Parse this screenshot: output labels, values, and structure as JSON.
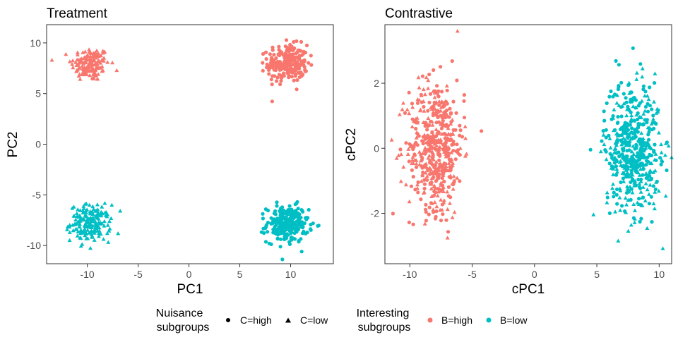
{
  "colors": {
    "B=high": "#F8766D",
    "B=low": "#00BFC4",
    "axis": "#333333",
    "text": "#000000"
  },
  "chart_data": [
    {
      "type": "scatter",
      "title": "Treatment",
      "xlabel": "PC1",
      "ylabel": "PC2",
      "xlim": [
        -14,
        14.2
      ],
      "ylim": [
        -11.8,
        11.8
      ],
      "xticks": [
        -10,
        -5,
        0,
        5,
        10
      ],
      "yticks": [
        -10,
        -5,
        0,
        5,
        10
      ],
      "grid": false,
      "clusters": [
        {
          "B": "B=high",
          "C": "C=low",
          "n": 150,
          "cx": -9.7,
          "cy": 7.9,
          "sx": 1.1,
          "sy": 0.85
        },
        {
          "B": "B=high",
          "C": "C=high",
          "n": 240,
          "cx": 9.7,
          "cy": 8.0,
          "sx": 1.15,
          "sy": 0.9
        },
        {
          "B": "B=low",
          "C": "C=low",
          "n": 190,
          "cx": -9.7,
          "cy": -7.8,
          "sx": 1.15,
          "sy": 0.9
        },
        {
          "B": "B=low",
          "C": "C=high",
          "n": 240,
          "cx": 9.7,
          "cy": -7.9,
          "sx": 1.2,
          "sy": 0.9
        }
      ]
    },
    {
      "type": "scatter",
      "title": "Contrastive",
      "xlabel": "cPC1",
      "ylabel": "cPC2",
      "xlim": [
        -12,
        11
      ],
      "ylim": [
        -3.55,
        3.8
      ],
      "xticks": [
        -10,
        -5,
        0,
        5,
        10
      ],
      "yticks": [
        -2,
        0,
        2
      ],
      "grid": false,
      "clusters": [
        {
          "B": "B=high",
          "C": "C=low",
          "n": 260,
          "cx": -8.0,
          "cy": 0.0,
          "sx": 1.3,
          "sy": 1.05
        },
        {
          "B": "B=high",
          "C": "C=high",
          "n": 260,
          "cx": -7.8,
          "cy": 0.1,
          "sx": 1.3,
          "sy": 1.0
        },
        {
          "B": "B=low",
          "C": "C=low",
          "n": 260,
          "cx": 8.0,
          "cy": -0.2,
          "sx": 1.3,
          "sy": 1.0
        },
        {
          "B": "B=low",
          "C": "C=high",
          "n": 260,
          "cx": 7.8,
          "cy": 0.2,
          "sx": 1.3,
          "sy": 1.0
        }
      ]
    }
  ],
  "legend": {
    "nuisance": {
      "title_line1": "Nuisance",
      "title_line2": "subgroups",
      "items": [
        {
          "label": "C=high",
          "shape": "circle"
        },
        {
          "label": "C=low",
          "shape": "triangle"
        }
      ]
    },
    "interesting": {
      "title_line1": "Interesting",
      "title_line2": "subgroups",
      "items": [
        {
          "label": "B=high",
          "color": "#F8766D"
        },
        {
          "label": "B=low",
          "color": "#00BFC4"
        }
      ]
    }
  }
}
